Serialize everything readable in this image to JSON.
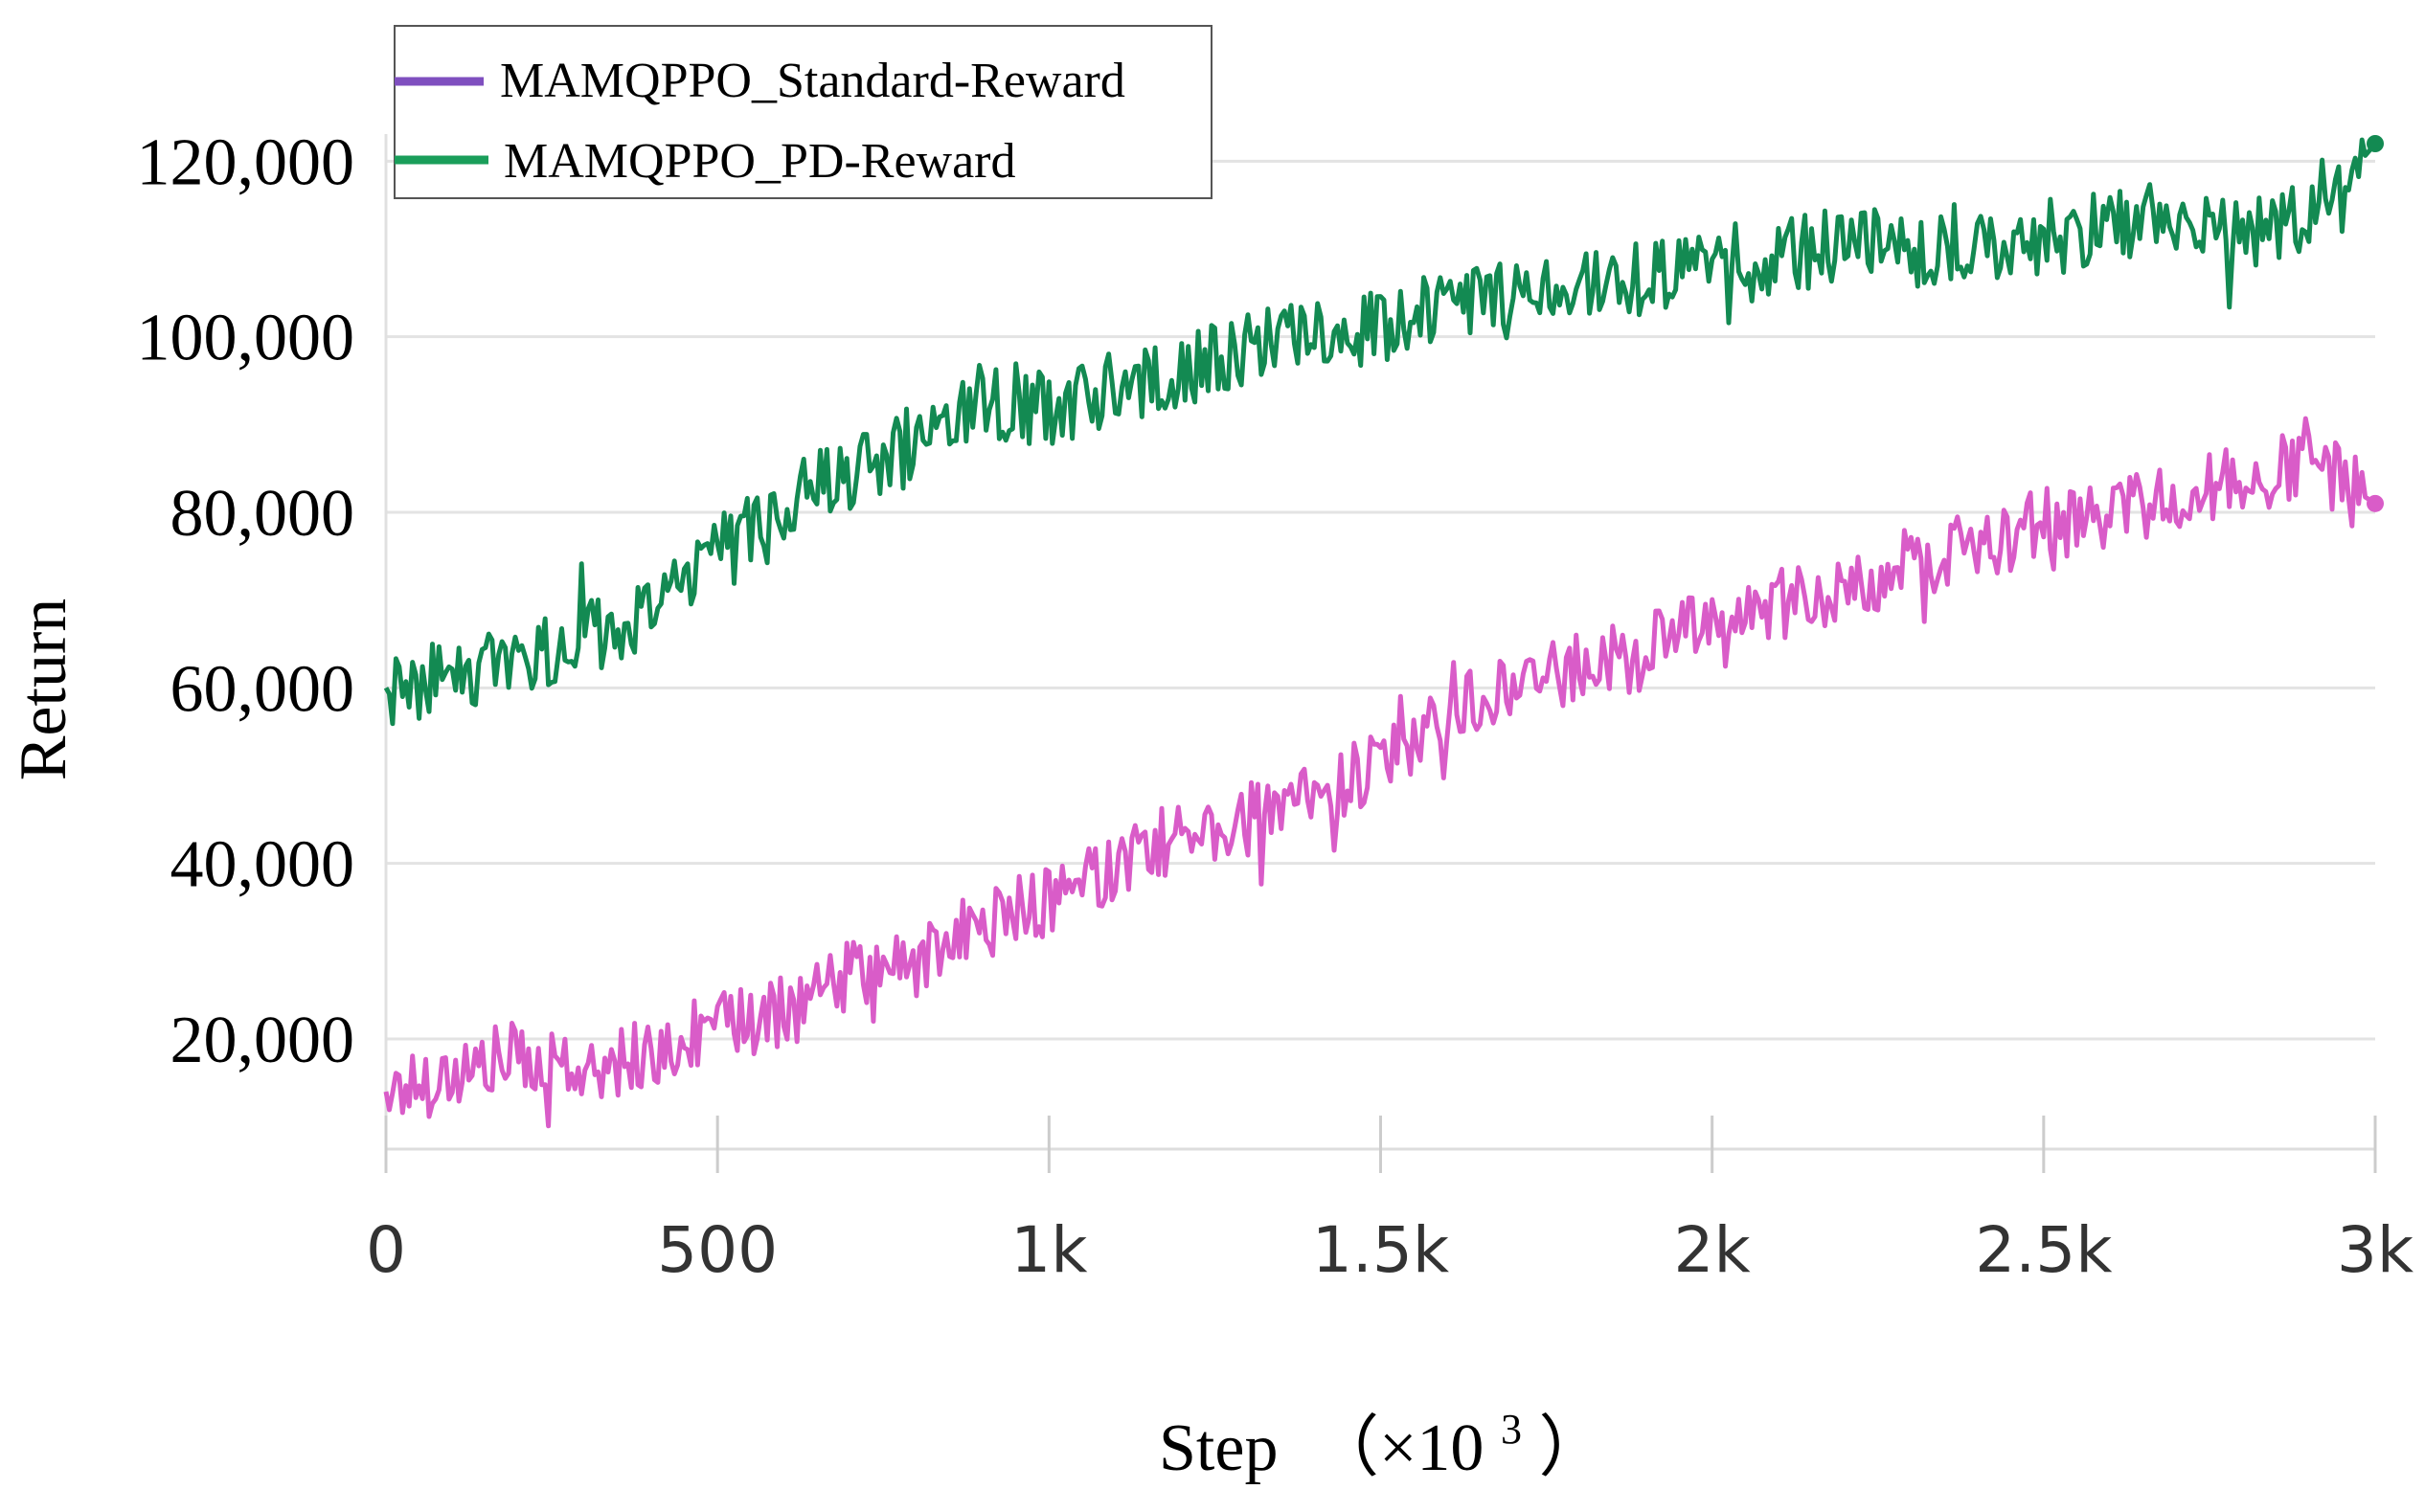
{
  "chart_data": {
    "type": "line",
    "title": "",
    "xlabel": "Step",
    "xlabel_unit": "（×10",
    "xlabel_unit_exp": "3",
    "xlabel_unit_close": "）",
    "ylabel": "Return",
    "xlim": [
      0,
      3000
    ],
    "ylim": [
      8000,
      122000
    ],
    "x_ticks": [
      0,
      500,
      1000,
      1500,
      2000,
      2500,
      3000
    ],
    "x_tick_labels": [
      "0",
      "500",
      "1k",
      "1.5k",
      "2k",
      "2.5k",
      "3k"
    ],
    "y_ticks": [
      20000,
      40000,
      60000,
      80000,
      100000,
      120000
    ],
    "y_tick_labels": [
      "20,000",
      "40,000",
      "60,000",
      "80,000",
      "100,000",
      "120,000"
    ],
    "grid": true,
    "legend_position": "top-left",
    "series": [
      {
        "name": "MAMQPPO_Standard-Reward",
        "legend_color": "#7F4FBF",
        "line_color": "#D95CC8",
        "x": [
          0,
          100,
          200,
          300,
          400,
          500,
          600,
          700,
          800,
          900,
          1000,
          1100,
          1200,
          1300,
          1400,
          1500,
          1600,
          1700,
          1800,
          1900,
          2000,
          2100,
          2200,
          2300,
          2400,
          2500,
          2600,
          2700,
          2800,
          2900,
          3000
        ],
        "values": [
          14000,
          16000,
          18000,
          17000,
          18500,
          21000,
          23000,
          27000,
          29000,
          33000,
          36000,
          40000,
          43000,
          45000,
          47000,
          52000,
          57000,
          61000,
          62500,
          64000,
          68000,
          69500,
          72000,
          74000,
          76500,
          78500,
          80000,
          82000,
          83500,
          86000,
          81000
        ],
        "end_marker": true
      },
      {
        "name": "MAMQPPO_PD-Reward",
        "legend_color": "#1A9E5A",
        "line_color": "#138A52",
        "x": [
          0,
          100,
          200,
          300,
          400,
          500,
          600,
          700,
          800,
          900,
          1000,
          1100,
          1200,
          1300,
          1400,
          1500,
          1600,
          1700,
          1800,
          1900,
          2000,
          2100,
          2200,
          2300,
          2400,
          2500,
          2600,
          2700,
          2800,
          2900,
          3000
        ],
        "values": [
          60000,
          61000,
          63000,
          66000,
          69000,
          76000,
          81000,
          84000,
          88000,
          93000,
          92000,
          94000,
          96000,
          98500,
          100000,
          101500,
          103000,
          104500,
          106000,
          107000,
          108500,
          109500,
          110500,
          110000,
          111000,
          111500,
          112500,
          113000,
          112500,
          113000,
          122000
        ],
        "end_marker": true
      }
    ]
  }
}
